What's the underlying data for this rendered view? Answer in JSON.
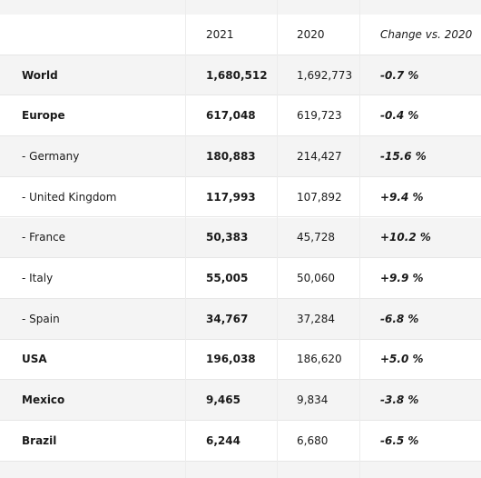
{
  "table": {
    "header": {
      "col_2021": "2021",
      "col_2020": "2020",
      "col_change": "Change vs. 2020"
    },
    "rows": [
      {
        "label": "World",
        "v2021": "1,680,512",
        "v2020": "1,692,773",
        "change": "-0.7 %",
        "label_bold": true
      },
      {
        "label": "Europe",
        "v2021": "617,048",
        "v2020": "619,723",
        "change": "-0.4 %",
        "label_bold": true
      },
      {
        "label": "- Germany",
        "v2021": "180,883",
        "v2020": "214,427",
        "change": "-15.6 %",
        "label_bold": false
      },
      {
        "label": "- United Kingdom",
        "v2021": "117,993",
        "v2020": "107,892",
        "change": "+9.4 %",
        "label_bold": false
      },
      {
        "label": "- France",
        "v2021": "50,383",
        "v2020": "45,728",
        "change": "+10.2 %",
        "label_bold": false
      },
      {
        "label": "- Italy",
        "v2021": "55,005",
        "v2020": "50,060",
        "change": "+9.9 %",
        "label_bold": false
      },
      {
        "label": "- Spain",
        "v2021": "34,767",
        "v2020": "37,284",
        "change": "-6.8 %",
        "label_bold": false
      },
      {
        "label": "USA",
        "v2021": "196,038",
        "v2020": "186,620",
        "change": "+5.0 %",
        "label_bold": true
      },
      {
        "label": "Mexico",
        "v2021": "9,465",
        "v2020": "9,834",
        "change": "-3.8 %",
        "label_bold": true
      },
      {
        "label": "Brazil",
        "v2021": "6,244",
        "v2020": "6,680",
        "change": "-6.5 %",
        "label_bold": true
      }
    ]
  }
}
